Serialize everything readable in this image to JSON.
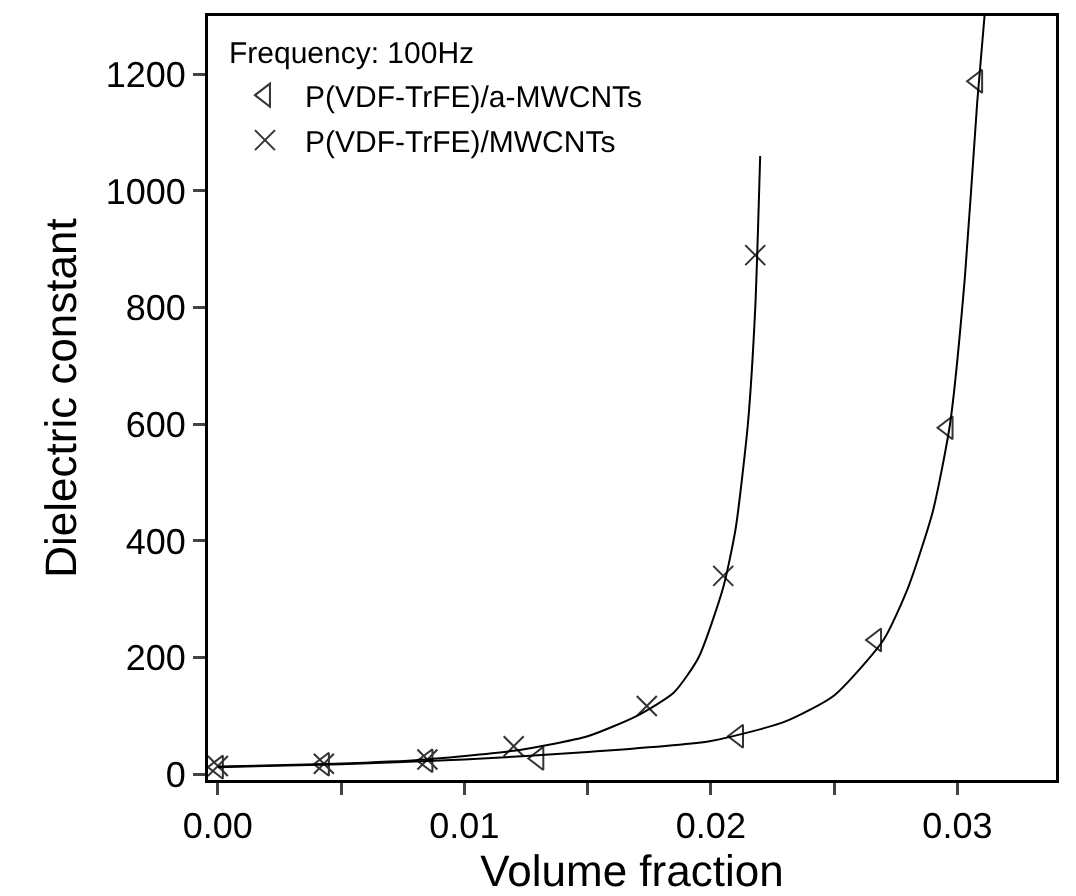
{
  "chart_data": {
    "type": "scatter",
    "xlabel": "Volume fraction",
    "ylabel": "Dielectric constant",
    "legend_title": "Frequency: 100Hz",
    "legend": "top left",
    "grid": false,
    "xlim": [
      -0.0004,
      0.034
    ],
    "ylim": [
      -10,
      1300
    ],
    "xticks": [
      {
        "value": 0,
        "label": "0.00"
      },
      {
        "value": 0.005,
        "label": null
      },
      {
        "value": 0.01,
        "label": "0.01"
      },
      {
        "value": 0.015,
        "label": null
      },
      {
        "value": 0.02,
        "label": "0.02"
      },
      {
        "value": 0.025,
        "label": null
      },
      {
        "value": 0.03,
        "label": "0.03"
      }
    ],
    "yticks": [
      0,
      200,
      400,
      600,
      800,
      1000,
      1200
    ],
    "series": [
      {
        "name": "P(VDF-TrFE)/a-MWCNTs",
        "marker": "triangle",
        "color": "#333333",
        "x": [
          0,
          0.0043,
          0.0085,
          0.013,
          0.0211,
          0.0267,
          0.0296,
          0.0308
        ],
        "values": [
          12,
          17,
          23,
          27,
          65,
          230,
          594,
          1188
        ]
      },
      {
        "name": "P(VDF-TrFE)/MWCNTs",
        "marker": "cross",
        "color": "#333333",
        "x": [
          0,
          0.0043,
          0.0085,
          0.012,
          0.0174,
          0.0205,
          0.0218
        ],
        "values": [
          14,
          18,
          25,
          48,
          117,
          340,
          890
        ]
      },
      {
        "type": "line",
        "marker": "none",
        "color": "#000000",
        "x": [
          0,
          0.005,
          0.01,
          0.015,
          0.02,
          0.023,
          0.025,
          0.027,
          0.028,
          0.029,
          0.0297,
          0.0303,
          0.0308,
          0.0311
        ],
        "values": [
          12,
          17,
          25,
          38,
          57,
          90,
          135,
          230,
          320,
          450,
          600,
          850,
          1150,
          1300
        ]
      },
      {
        "type": "line",
        "marker": "none",
        "color": "#000000",
        "x": [
          0,
          0.004,
          0.008,
          0.012,
          0.015,
          0.017,
          0.0185,
          0.0195,
          0.0205,
          0.021,
          0.0215,
          0.0218,
          0.022
        ],
        "values": [
          13,
          17,
          24,
          40,
          65,
          100,
          140,
          200,
          320,
          420,
          600,
          800,
          1060
        ]
      }
    ]
  }
}
